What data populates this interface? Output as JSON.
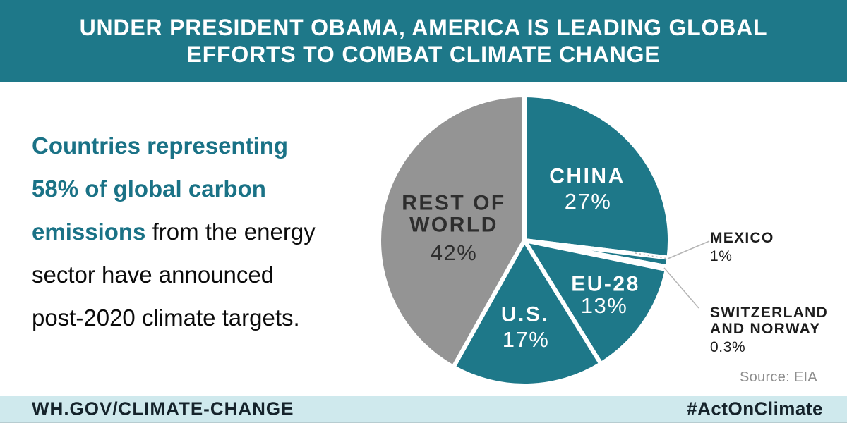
{
  "header": {
    "line1": "UNDER PRESIDENT OBAMA, AMERICA IS LEADING GLOBAL",
    "line2": "EFFORTS TO COMBAT CLIMATE CHANGE",
    "bg_color": "#1e7889",
    "text_color": "#ffffff"
  },
  "intro": {
    "line1_teal": "Countries representing",
    "line2_teal": "58% of global carbon",
    "line3_teal": "emissions",
    "line3_black": "from the energy",
    "line4_black": "sector have announced",
    "line5_black": "post-2020 climate targets.",
    "highlight_color": "#1a7286"
  },
  "chart_data": {
    "type": "pie",
    "title": "Share of global carbon emissions from the energy sector",
    "start_angle_deg": 0,
    "direction": "clockwise",
    "legend_position": "in-slice and callout labels",
    "source": "Source: EIA",
    "categories": [
      "CHINA",
      "MEXICO",
      "SWITZERLAND AND NORWAY",
      "EU-28",
      "U.S.",
      "REST OF WORLD"
    ],
    "values": [
      27,
      1,
      0.3,
      13,
      17,
      42
    ],
    "slices": [
      {
        "label": "CHINA",
        "pct_label": "27%",
        "value": 27,
        "color": "#1e7889",
        "label_color": "#ffffff"
      },
      {
        "label": "MEXICO",
        "pct_label": "1%",
        "value": 1,
        "color": "#1e7889",
        "callout": true
      },
      {
        "label": "SWITZERLAND AND NORWAY",
        "label_line1": "SWITZERLAND",
        "label_line2": "AND NORWAY",
        "pct_label": "0.3%",
        "value": 0.3,
        "color": "#1e7889",
        "callout": true
      },
      {
        "label": "EU-28",
        "pct_label": "13%",
        "value": 13,
        "color": "#1e7889",
        "label_color": "#ffffff"
      },
      {
        "label": "U.S.",
        "pct_label": "17%",
        "value": 17,
        "color": "#1e7889",
        "label_color": "#ffffff"
      },
      {
        "label": "REST OF WORLD",
        "label_line1": "REST OF",
        "label_line2": "WORLD",
        "pct_label": "42%",
        "value": 42,
        "color": "#949494",
        "label_color": "#2e2e2e"
      }
    ],
    "separator_color": "#ffffff",
    "leader_line_color": "#b5b5b5"
  },
  "footer": {
    "left": "WH.GOV/CLIMATE-CHANGE",
    "right": "#ActOnClimate",
    "bg_color": "#cfe9ed"
  }
}
